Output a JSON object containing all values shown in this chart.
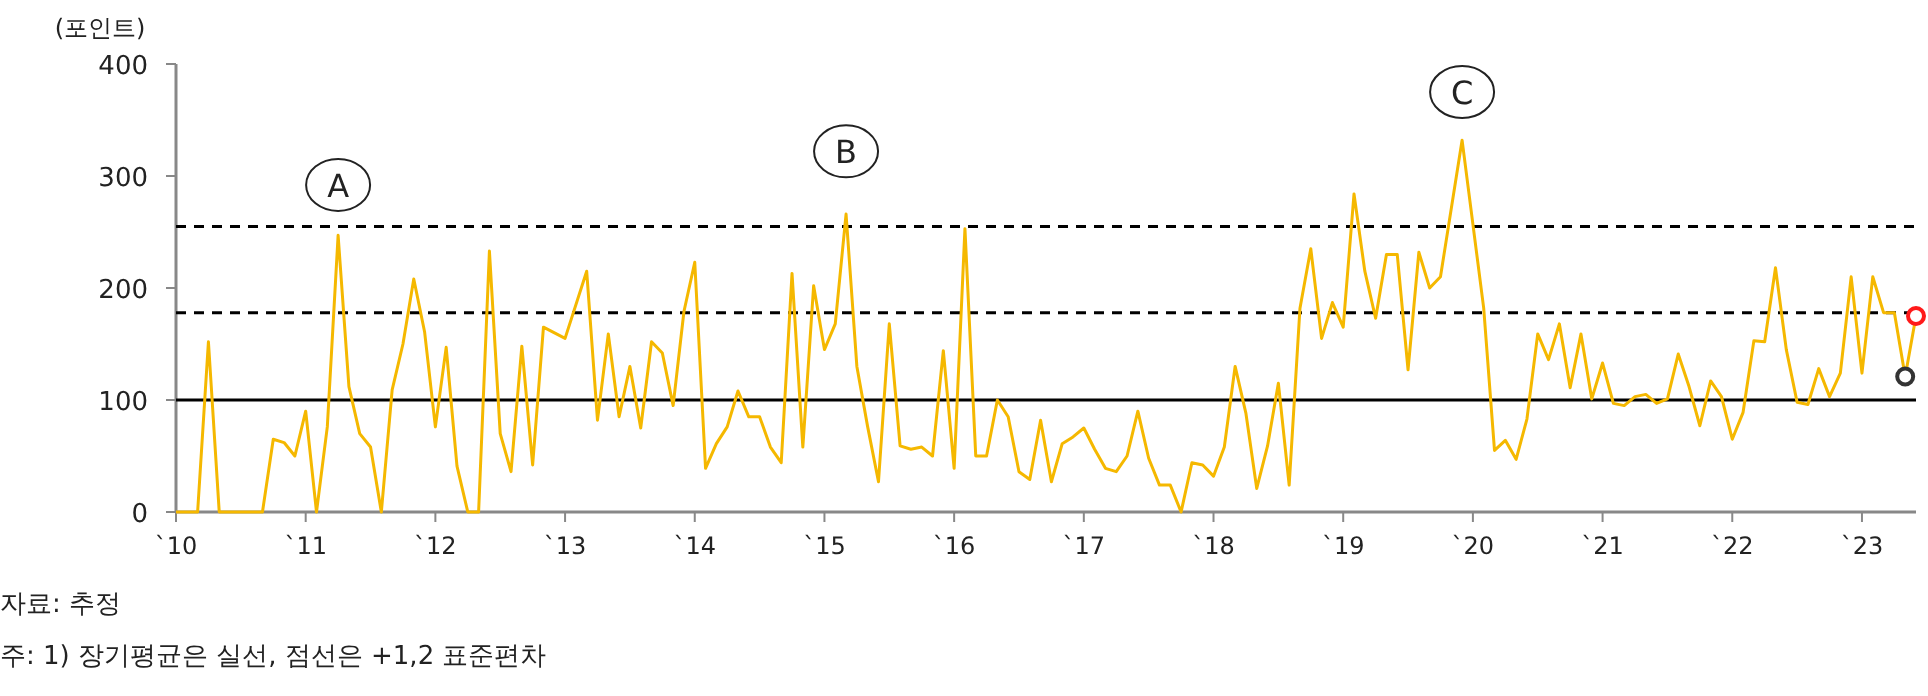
{
  "chart_data": {
    "type": "line",
    "ylabel": "(포인트)",
    "xlim": [
      "2010-01",
      "2023-06"
    ],
    "ylim": [
      0,
      400
    ],
    "yticks": [
      0,
      100,
      200,
      300,
      400
    ],
    "xticks": [
      {
        "value": "2010",
        "label": "`10"
      },
      {
        "value": "2011",
        "label": "`11"
      },
      {
        "value": "2012",
        "label": "`12"
      },
      {
        "value": "2013",
        "label": "`13"
      },
      {
        "value": "2014",
        "label": "`14"
      },
      {
        "value": "2015",
        "label": "`15"
      },
      {
        "value": "2016",
        "label": "`16"
      },
      {
        "value": "2017",
        "label": "`17"
      },
      {
        "value": "2018",
        "label": "`18"
      },
      {
        "value": "2019",
        "label": "`19"
      },
      {
        "value": "2020",
        "label": "`20"
      },
      {
        "value": "2021",
        "label": "`21"
      },
      {
        "value": "2022",
        "label": "`22"
      },
      {
        "value": "2023",
        "label": "`23"
      }
    ],
    "grid": false,
    "line_style": "solid",
    "ref_lines": [
      {
        "axis": "y",
        "value": 100,
        "color": "#000000",
        "line_style": "solid"
      },
      {
        "axis": "y",
        "value": 178,
        "color": "#000000",
        "line_style": "dashed"
      },
      {
        "axis": "y",
        "value": 255,
        "color": "#000000",
        "line_style": "dashed"
      }
    ],
    "series": [
      {
        "color": "#f5b800",
        "x": [
          "2010-01",
          "2010-03",
          "2010-04",
          "2010-05",
          "2010-09",
          "2010-10",
          "2010-11",
          "2010-12",
          "2011-01",
          "2011-02",
          "2011-03",
          "2011-04",
          "2011-05",
          "2011-06",
          "2011-07",
          "2011-08",
          "2011-09",
          "2011-10",
          "2011-11",
          "2011-12",
          "2012-01",
          "2012-02",
          "2012-03",
          "2012-04",
          "2012-05",
          "2012-06",
          "2012-07",
          "2012-08",
          "2012-09",
          "2012-10",
          "2012-11",
          "2013-01",
          "2013-03",
          "2013-04",
          "2013-05",
          "2013-06",
          "2013-07",
          "2013-08",
          "2013-09",
          "2013-10",
          "2013-11",
          "2013-12",
          "2014-01",
          "2014-02",
          "2014-03",
          "2014-04",
          "2014-05",
          "2014-06",
          "2014-07",
          "2014-08",
          "2014-09",
          "2014-10",
          "2014-11",
          "2014-12",
          "2015-01",
          "2015-02",
          "2015-03",
          "2015-04",
          "2015-05",
          "2015-06",
          "2015-07",
          "2015-08",
          "2015-09",
          "2015-10",
          "2015-11",
          "2015-12",
          "2016-01",
          "2016-02",
          "2016-03",
          "2016-04",
          "2016-05",
          "2016-06",
          "2016-07",
          "2016-08",
          "2016-09",
          "2016-10",
          "2016-11",
          "2016-12",
          "2017-01",
          "2017-02",
          "2017-03",
          "2017-04",
          "2017-05",
          "2017-06",
          "2017-07",
          "2017-08",
          "2017-09",
          "2017-10",
          "2017-11",
          "2017-12",
          "2018-01",
          "2018-02",
          "2018-03",
          "2018-04",
          "2018-05",
          "2018-06",
          "2018-07",
          "2018-08",
          "2018-09",
          "2018-10",
          "2018-11",
          "2018-12",
          "2019-01",
          "2019-02",
          "2019-03",
          "2019-04",
          "2019-05",
          "2019-06",
          "2019-07",
          "2019-08",
          "2019-09",
          "2019-10",
          "2019-12",
          "2020-02",
          "2020-03",
          "2020-04",
          "2020-05",
          "2020-06",
          "2020-07",
          "2020-08",
          "2020-09",
          "2020-10",
          "2020-11",
          "2020-12",
          "2021-01",
          "2021-02",
          "2021-03",
          "2021-04",
          "2021-05",
          "2021-06",
          "2021-07",
          "2021-08",
          "2021-09",
          "2021-10",
          "2021-11",
          "2021-12",
          "2022-01",
          "2022-02",
          "2022-03",
          "2022-04",
          "2022-05",
          "2022-06",
          "2022-07",
          "2022-08",
          "2022-09",
          "2022-10",
          "2022-11",
          "2022-12",
          "2023-01",
          "2023-02",
          "2023-03",
          "2023-04",
          "2023-05",
          "2023-06"
        ],
        "values": [
          0,
          0,
          152,
          0,
          0,
          65,
          62,
          50,
          90,
          0,
          76,
          247,
          112,
          70,
          58,
          0,
          109,
          150,
          208,
          161,
          76,
          147,
          41,
          0,
          0,
          233,
          70,
          36,
          148,
          42,
          165,
          155,
          215,
          82,
          159,
          85,
          130,
          75,
          152,
          142,
          95,
          179,
          223,
          39,
          61,
          76,
          108,
          85,
          85,
          58,
          44,
          213,
          58,
          202,
          145,
          168,
          266,
          130,
          76,
          27,
          168,
          59,
          56,
          58,
          50,
          144,
          39,
          253,
          50,
          50,
          100,
          85,
          36,
          29,
          82,
          27,
          61,
          67,
          75,
          56,
          39,
          36,
          50,
          90,
          48,
          24,
          24,
          0,
          44,
          42,
          32,
          58,
          130,
          88,
          21,
          59,
          115,
          24,
          182,
          235,
          155,
          187,
          165,
          284,
          215,
          173,
          230,
          230,
          127,
          232,
          200,
          210,
          332,
          182,
          55,
          64,
          47,
          83,
          159,
          136,
          168,
          111,
          159,
          101,
          133,
          97,
          95,
          103,
          105,
          97,
          101,
          141,
          112,
          77,
          117,
          103,
          65,
          89,
          153,
          152,
          218,
          145,
          98,
          96,
          128,
          103,
          124,
          210,
          124,
          210,
          178,
          178,
          121,
          175
        ]
      },
      {
        "type": "scatter",
        "marker": "circle",
        "color": "#333333",
        "x": [
          "2023-05"
        ],
        "values": [
          121
        ]
      },
      {
        "type": "scatter",
        "marker": "circle",
        "color": "#ff1a1a",
        "x": [
          "2023-06"
        ],
        "values": [
          175
        ]
      }
    ],
    "annotations": [
      {
        "text": "A",
        "x": "2011-04",
        "y": 292
      },
      {
        "text": "B",
        "x": "2015-03",
        "y": 322
      },
      {
        "text": "C",
        "x": "2019-12",
        "y": 375
      },
      "자료: 추정",
      "주: 1) 장기평균은 실선, 점선은 +1,2 표준편차"
    ]
  }
}
